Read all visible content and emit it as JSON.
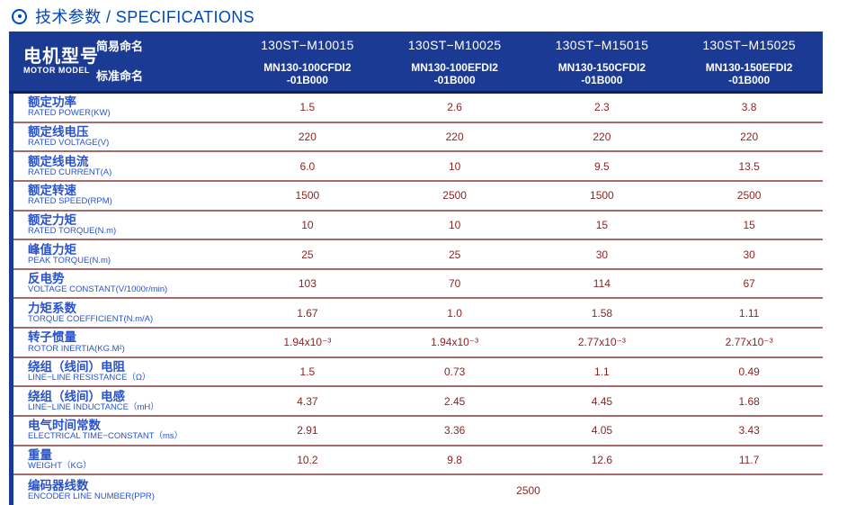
{
  "page": {
    "title": "技术参数 / SPECIFICATIONS"
  },
  "colors": {
    "title_blue": "#0049b8",
    "header_bg": "#1b3a94",
    "header_edge": "#0c2158",
    "label_blue": "#2953cb",
    "value_maroon": "#8b2525",
    "separator": "#a56a6a"
  },
  "header": {
    "motor_model_cn": "电机型号",
    "motor_model_en": "MOTOR MODEL",
    "simple_name_label": "简易命名",
    "standard_name_label": "标准命名",
    "columns": [
      {
        "simple": "130ST−M10015",
        "standard_line1": "MN130-100CFDI2",
        "standard_line2": "-01B000"
      },
      {
        "simple": "130ST−M10025",
        "standard_line1": "MN130-100EFDI2",
        "standard_line2": "-01B000"
      },
      {
        "simple": "130ST−M15015",
        "standard_line1": "MN130-150CFDI2",
        "standard_line2": "-01B000"
      },
      {
        "simple": "130ST−M15025",
        "standard_line1": "MN130-150EFDI2",
        "standard_line2": "-01B000"
      }
    ]
  },
  "table": {
    "rows": [
      {
        "cn": "额定功率",
        "en": "RATED POWER(KW)",
        "values": [
          "1.5",
          "2.6",
          "2.3",
          "3.8"
        ]
      },
      {
        "cn": "额定线电压",
        "en": "RATED VOLTAGE(V)",
        "values": [
          "220",
          "220",
          "220",
          "220"
        ]
      },
      {
        "cn": "额定线电流",
        "en": "RATED CURRENT(A)",
        "values": [
          "6.0",
          "10",
          "9.5",
          "13.5"
        ]
      },
      {
        "cn": "额定转速",
        "en": "RATED SPEED(RPM)",
        "values": [
          "1500",
          "2500",
          "1500",
          "2500"
        ]
      },
      {
        "cn": "额定力矩",
        "en": "RATED TORQUE(N.m)",
        "values": [
          "10",
          "10",
          "15",
          "15"
        ]
      },
      {
        "cn": "峰值力矩",
        "en": "PEAK TORQUE(N.m)",
        "values": [
          "25",
          "25",
          "30",
          "30"
        ]
      },
      {
        "cn": "反电势",
        "en": "VOLTAGE CONSTANT(V/1000r/min)",
        "values": [
          "103",
          "70",
          "114",
          "67"
        ]
      },
      {
        "cn": "力矩系数",
        "en": "TORQUE COEFFICIENT(N.m/A)",
        "values": [
          "1.67",
          "1.0",
          "1.58",
          "1.11"
        ]
      },
      {
        "cn": "转子惯量",
        "en": "ROTOR INERTIA(KG.M²)",
        "values": [
          "1.94x10⁻³",
          "1.94x10⁻³",
          "2.77x10⁻³",
          "2.77x10⁻³"
        ]
      },
      {
        "cn": "绕组（线间）电阻",
        "en": "LINE−LINE RESISTANCE（Ω）",
        "values": [
          "1.5",
          "0.73",
          "1.1",
          "0.49"
        ]
      },
      {
        "cn": "绕组（线间）电感",
        "en": "LINE−LINE INDUCTANCE（mH）",
        "values": [
          "4.37",
          "2.45",
          "4.45",
          "1.68"
        ]
      },
      {
        "cn": "电气时间常数",
        "en": "ELECTRICAL TIME−CONSTANT（ms）",
        "values": [
          "2.91",
          "3.36",
          "4.05",
          "3.43"
        ]
      },
      {
        "cn": "重量",
        "en": "WEIGHT（KG）",
        "values": [
          "10.2",
          "9.8",
          "12.6",
          "11.7"
        ]
      },
      {
        "cn": "编码器线数",
        "en": "ENCODER LINE NUMBER(PPR)",
        "span_value": "2500"
      }
    ]
  }
}
